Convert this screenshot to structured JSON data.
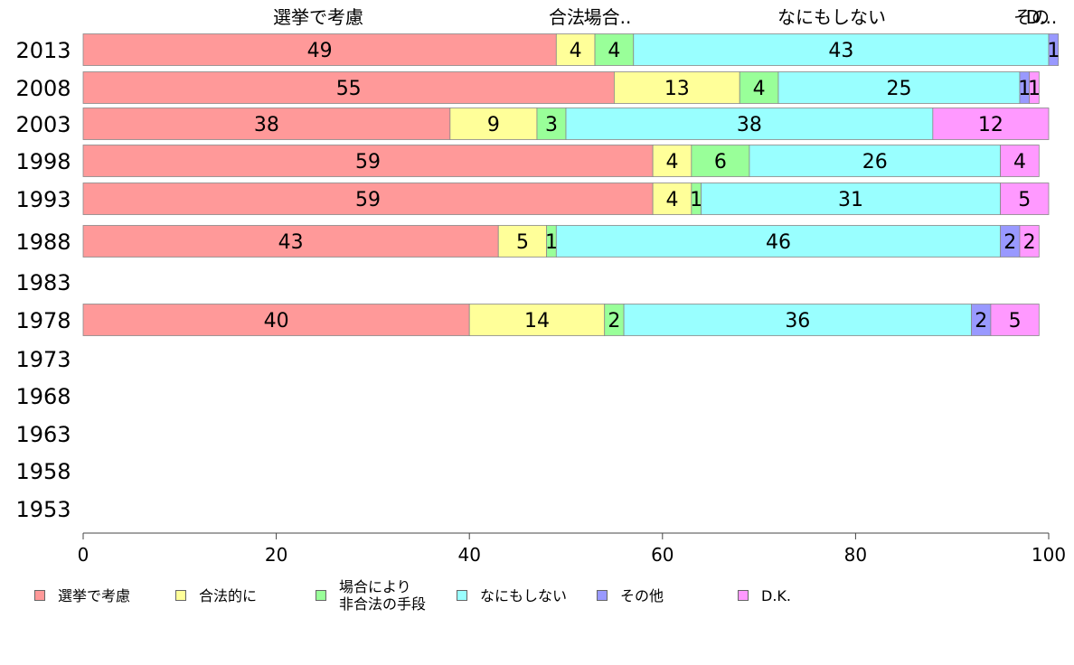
{
  "chart_data": {
    "type": "bar",
    "orientation": "horizontal",
    "stacked": true,
    "categories": [
      "2013",
      "2008",
      "2003",
      "1998",
      "1993",
      "1988",
      "1983",
      "1978",
      "1973",
      "1968",
      "1963",
      "1958",
      "1953"
    ],
    "series": [
      {
        "name": "選挙で考慮",
        "color": "#ff9999",
        "values": [
          49,
          55,
          38,
          59,
          59,
          43,
          null,
          40,
          null,
          null,
          null,
          null,
          null
        ]
      },
      {
        "name": "合法的に",
        "color": "#ffff99",
        "values": [
          4,
          13,
          9,
          4,
          4,
          5,
          null,
          14,
          null,
          null,
          null,
          null,
          null
        ]
      },
      {
        "name": "場合により\n非合法の手段",
        "color": "#99ff99",
        "values": [
          4,
          4,
          3,
          6,
          1,
          1,
          null,
          2,
          null,
          null,
          null,
          null,
          null
        ]
      },
      {
        "name": "なにもしない",
        "color": "#99ffff",
        "values": [
          43,
          25,
          38,
          26,
          31,
          46,
          null,
          36,
          null,
          null,
          null,
          null,
          null
        ]
      },
      {
        "name": "その他",
        "color": "#9999ff",
        "values": [
          1,
          1,
          0,
          0,
          0,
          2,
          null,
          2,
          null,
          null,
          null,
          null,
          null
        ]
      },
      {
        "name": "D.K.",
        "color": "#ff99ff",
        "values": [
          0,
          1,
          12,
          4,
          5,
          2,
          null,
          5,
          null,
          null,
          null,
          null,
          null
        ]
      }
    ],
    "top_labels": [
      "選挙で考慮",
      "合法",
      "場合..",
      "なにもしない",
      "その",
      "D..."
    ],
    "xlim": [
      0,
      100
    ],
    "xticks": [
      "0",
      "20",
      "40",
      "60",
      "80",
      "100"
    ],
    "grid": false,
    "legend_position": "bottom"
  }
}
